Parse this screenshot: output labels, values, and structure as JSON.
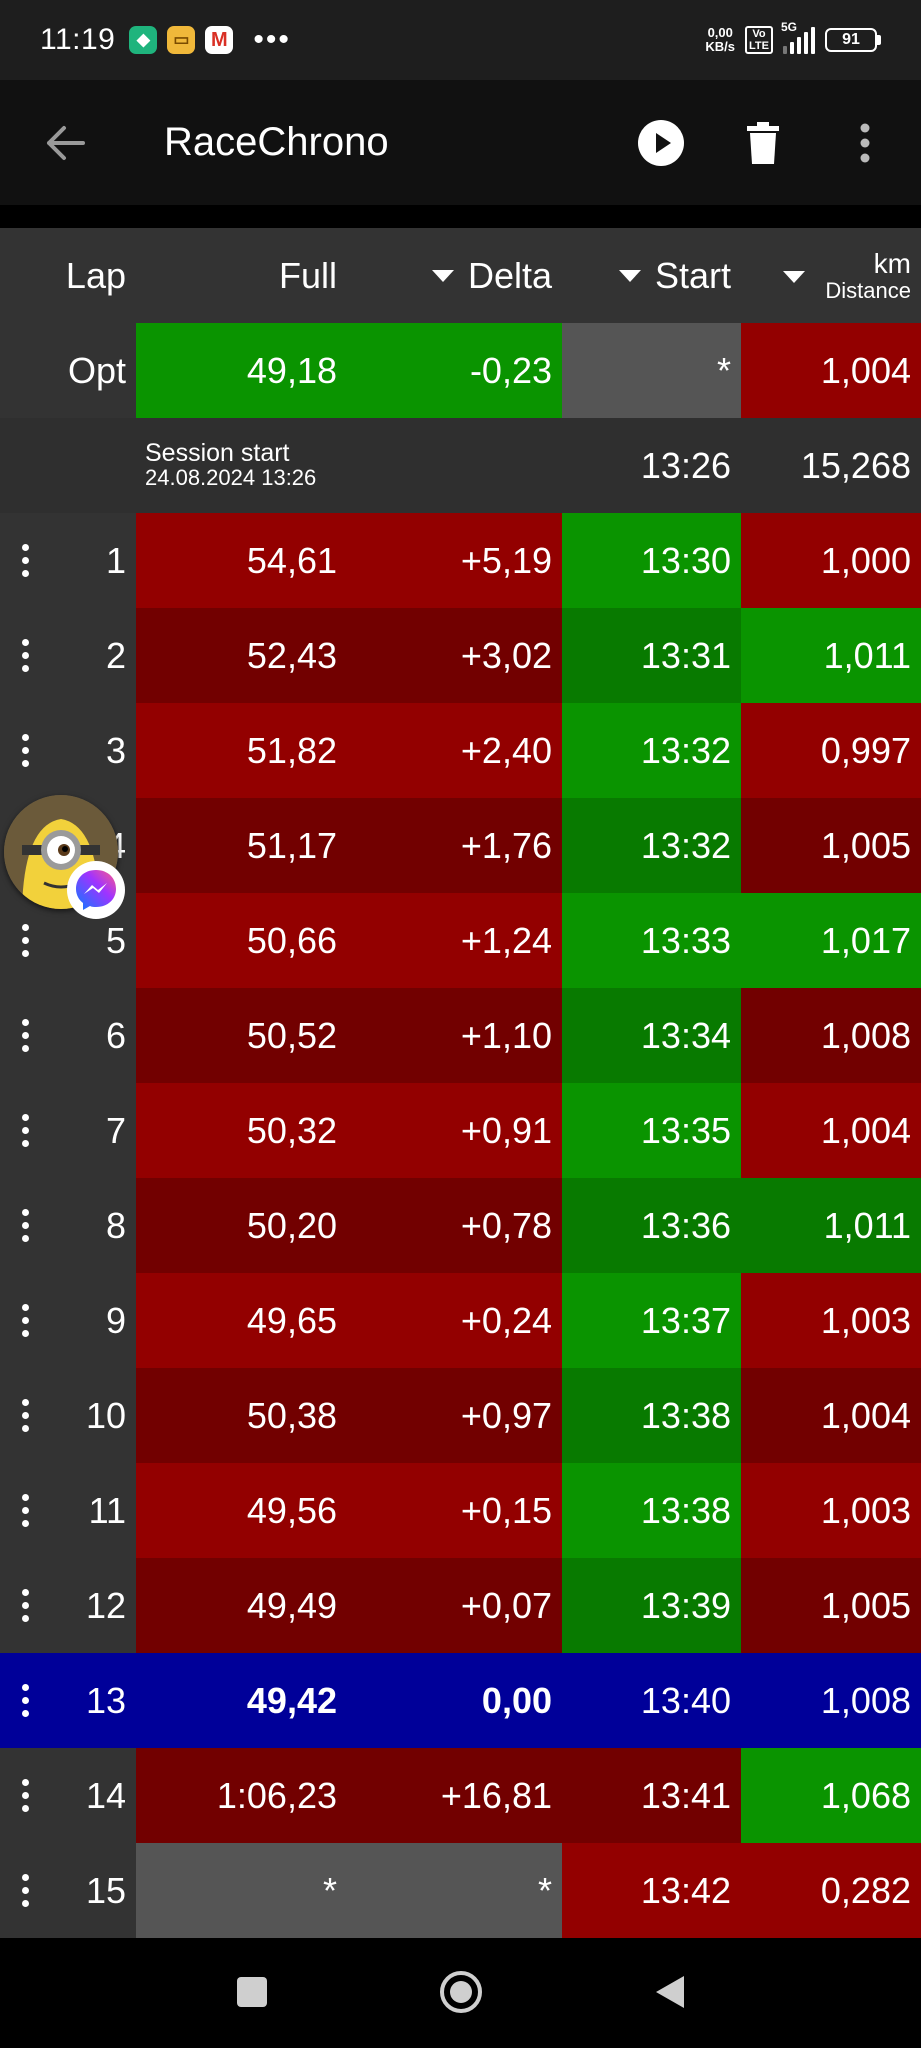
{
  "status_bar": {
    "time": "11:19",
    "net_speed_value": "0,00",
    "net_speed_unit": "KB/s",
    "volte_top": "Vo",
    "volte_bottom": "LTE",
    "network": "5G",
    "battery": "91",
    "more_glyph": "•••",
    "icons": [
      "shield-icon",
      "app-icon",
      "gmail-icon"
    ]
  },
  "app_bar": {
    "title": "RaceChrono",
    "icons": [
      "back-arrow-icon",
      "play-icon",
      "trash-icon",
      "overflow-menu-icon"
    ]
  },
  "table": {
    "headers": {
      "lap": "Lap",
      "full": "Full",
      "delta": "Delta",
      "start": "Start",
      "distance_unit": "km",
      "distance_label": "Distance"
    },
    "optimal": {
      "lap": "Opt",
      "full": "49,18",
      "delta": "-0,23",
      "start": "*",
      "distance": "1,004"
    },
    "session": {
      "label": "Session start",
      "datetime": "24.08.2024 13:26",
      "start": "13:26",
      "distance": "15,268"
    },
    "laps": [
      {
        "lap": "1",
        "full": "54,61",
        "delta": "+5,19",
        "start": "13:30",
        "distance": "1,000"
      },
      {
        "lap": "2",
        "full": "52,43",
        "delta": "+3,02",
        "start": "13:31",
        "distance": "1,011"
      },
      {
        "lap": "3",
        "full": "51,82",
        "delta": "+2,40",
        "start": "13:32",
        "distance": "0,997"
      },
      {
        "lap": "4",
        "full": "51,17",
        "delta": "+1,76",
        "start": "13:32",
        "distance": "1,005"
      },
      {
        "lap": "5",
        "full": "50,66",
        "delta": "+1,24",
        "start": "13:33",
        "distance": "1,017"
      },
      {
        "lap": "6",
        "full": "50,52",
        "delta": "+1,10",
        "start": "13:34",
        "distance": "1,008"
      },
      {
        "lap": "7",
        "full": "50,32",
        "delta": "+0,91",
        "start": "13:35",
        "distance": "1,004"
      },
      {
        "lap": "8",
        "full": "50,20",
        "delta": "+0,78",
        "start": "13:36",
        "distance": "1,011"
      },
      {
        "lap": "9",
        "full": "49,65",
        "delta": "+0,24",
        "start": "13:37",
        "distance": "1,003"
      },
      {
        "lap": "10",
        "full": "50,38",
        "delta": "+0,97",
        "start": "13:38",
        "distance": "1,004"
      },
      {
        "lap": "11",
        "full": "49,56",
        "delta": "+0,15",
        "start": "13:38",
        "distance": "1,003"
      },
      {
        "lap": "12",
        "full": "49,49",
        "delta": "+0,07",
        "start": "13:39",
        "distance": "1,005"
      },
      {
        "lap": "13",
        "full": "49,42",
        "delta": "0,00",
        "start": "13:40",
        "distance": "1,008"
      },
      {
        "lap": "14",
        "full": "1:06,23",
        "delta": "+16,81",
        "start": "13:41",
        "distance": "1,068"
      },
      {
        "lap": "15",
        "full": "*",
        "delta": "*",
        "start": "13:42",
        "distance": "0,282"
      }
    ]
  },
  "overlay": {
    "chat_head": "minion-avatar",
    "badge": "messenger-icon"
  },
  "nav_bar": {
    "icons": [
      "recents-square-icon",
      "home-circle-icon",
      "back-triangle-icon"
    ]
  },
  "colors": {
    "green_bright": "#0a9400",
    "green_mid": "#087a00",
    "red_bright": "#930000",
    "red_dark": "#720000",
    "grey": "#555555",
    "reference_lap_blue": "#000099",
    "header_bg": "#333333"
  }
}
